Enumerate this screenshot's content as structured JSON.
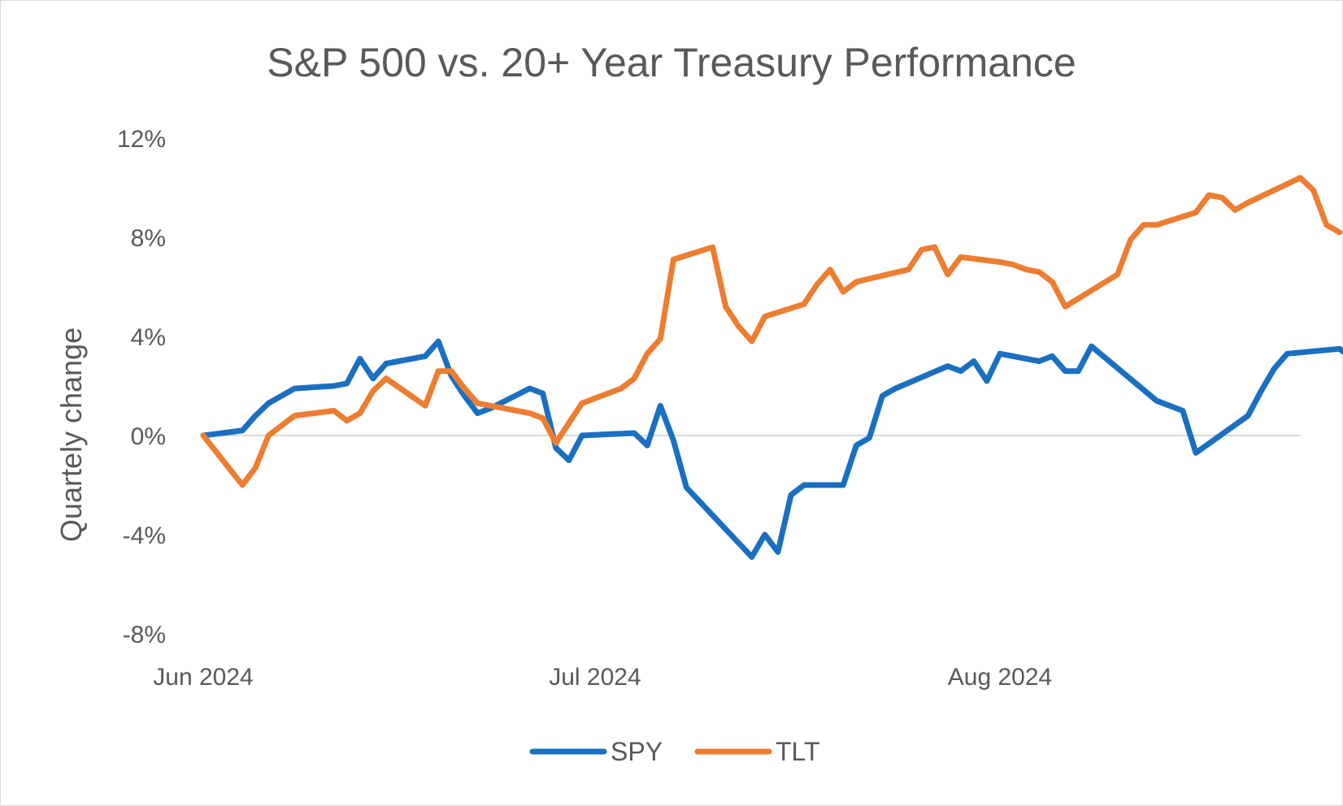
{
  "chart_data": {
    "type": "line",
    "title": "S&P 500 vs. 20+ Year Treasury Performance",
    "xlabel": "",
    "ylabel": "Quartely change",
    "ylim": [
      -8,
      12
    ],
    "yticks": [
      12,
      8,
      4,
      0,
      -4,
      -8
    ],
    "ytick_labels": [
      "12%",
      "8%",
      "4%",
      "0%",
      "-4%",
      "-8%"
    ],
    "xlim": [
      "2024-06-01",
      "2024-08-28"
    ],
    "xticks": [
      {
        "date": "2024-06-01",
        "label": "Jun 2024"
      },
      {
        "date": "2024-07-01",
        "label": "Jul 2024"
      },
      {
        "date": "2024-08-01",
        "label": "Aug 2024"
      }
    ],
    "grid": false,
    "zero_line": true,
    "legend": "bottom",
    "series": [
      {
        "name": "SPY",
        "color": "#1a6fc1",
        "points": [
          [
            "2024-06-01",
            0.0
          ],
          [
            "2024-06-04",
            0.2
          ],
          [
            "2024-06-05",
            0.8
          ],
          [
            "2024-06-06",
            1.3
          ],
          [
            "2024-06-08",
            1.9
          ],
          [
            "2024-06-11",
            2.0
          ],
          [
            "2024-06-12",
            2.1
          ],
          [
            "2024-06-13",
            3.1
          ],
          [
            "2024-06-14",
            2.3
          ],
          [
            "2024-06-15",
            2.9
          ],
          [
            "2024-06-18",
            3.2
          ],
          [
            "2024-06-19",
            3.8
          ],
          [
            "2024-06-20",
            2.4
          ],
          [
            "2024-06-21",
            1.6
          ],
          [
            "2024-06-22",
            0.9
          ],
          [
            "2024-06-23",
            1.1
          ],
          [
            "2024-06-26",
            1.9
          ],
          [
            "2024-06-27",
            1.7
          ],
          [
            "2024-06-28",
            -0.5
          ],
          [
            "2024-06-29",
            -1.0
          ],
          [
            "2024-06-30",
            0.0
          ],
          [
            "2024-07-04",
            0.1
          ],
          [
            "2024-07-05",
            -0.4
          ],
          [
            "2024-07-06",
            1.2
          ],
          [
            "2024-07-07",
            -0.2
          ],
          [
            "2024-07-08",
            -2.1
          ],
          [
            "2024-07-13",
            -4.9
          ],
          [
            "2024-07-14",
            -4.0
          ],
          [
            "2024-07-15",
            -4.7
          ],
          [
            "2024-07-16",
            -2.4
          ],
          [
            "2024-07-17",
            -2.0
          ],
          [
            "2024-07-20",
            -2.0
          ],
          [
            "2024-07-21",
            -0.4
          ],
          [
            "2024-07-22",
            -0.1
          ],
          [
            "2024-07-23",
            1.6
          ],
          [
            "2024-07-24",
            1.9
          ],
          [
            "2024-07-28",
            2.8
          ],
          [
            "2024-07-29",
            2.6
          ],
          [
            "2024-07-30",
            3.0
          ],
          [
            "2024-07-31",
            2.2
          ],
          [
            "2024-08-01",
            3.3
          ],
          [
            "2024-08-04",
            3.0
          ],
          [
            "2024-08-05",
            3.2
          ],
          [
            "2024-08-06",
            2.6
          ],
          [
            "2024-08-07",
            2.6
          ],
          [
            "2024-08-08",
            3.6
          ],
          [
            "2024-08-13",
            1.4
          ],
          [
            "2024-08-15",
            1.0
          ],
          [
            "2024-08-16",
            -0.7
          ],
          [
            "2024-08-20",
            0.8
          ],
          [
            "2024-08-21",
            1.8
          ],
          [
            "2024-08-22",
            2.7
          ],
          [
            "2024-08-23",
            3.3
          ],
          [
            "2024-08-27",
            3.5
          ],
          [
            "2024-08-28",
            3.1
          ],
          [
            "2024-08-29",
            4.9
          ]
        ]
      },
      {
        "name": "TLT",
        "color": "#ed7d31",
        "points": [
          [
            "2024-06-01",
            0.0
          ],
          [
            "2024-06-04",
            -2.0
          ],
          [
            "2024-06-05",
            -1.3
          ],
          [
            "2024-06-06",
            0.0
          ],
          [
            "2024-06-08",
            0.8
          ],
          [
            "2024-06-11",
            1.0
          ],
          [
            "2024-06-12",
            0.6
          ],
          [
            "2024-06-13",
            0.9
          ],
          [
            "2024-06-14",
            1.8
          ],
          [
            "2024-06-15",
            2.3
          ],
          [
            "2024-06-18",
            1.2
          ],
          [
            "2024-06-19",
            2.6
          ],
          [
            "2024-06-20",
            2.6
          ],
          [
            "2024-06-21",
            1.9
          ],
          [
            "2024-06-22",
            1.3
          ],
          [
            "2024-06-26",
            0.9
          ],
          [
            "2024-06-27",
            0.7
          ],
          [
            "2024-06-28",
            -0.3
          ],
          [
            "2024-06-30",
            1.3
          ],
          [
            "2024-07-03",
            1.9
          ],
          [
            "2024-07-04",
            2.3
          ],
          [
            "2024-07-05",
            3.3
          ],
          [
            "2024-07-06",
            3.9
          ],
          [
            "2024-07-07",
            7.1
          ],
          [
            "2024-07-10",
            7.6
          ],
          [
            "2024-07-11",
            5.2
          ],
          [
            "2024-07-12",
            4.4
          ],
          [
            "2024-07-13",
            3.8
          ],
          [
            "2024-07-14",
            4.8
          ],
          [
            "2024-07-17",
            5.3
          ],
          [
            "2024-07-18",
            6.1
          ],
          [
            "2024-07-19",
            6.7
          ],
          [
            "2024-07-20",
            5.8
          ],
          [
            "2024-07-21",
            6.2
          ],
          [
            "2024-07-25",
            6.7
          ],
          [
            "2024-07-26",
            7.5
          ],
          [
            "2024-07-27",
            7.6
          ],
          [
            "2024-07-28",
            6.5
          ],
          [
            "2024-07-29",
            7.2
          ],
          [
            "2024-08-01",
            7.0
          ],
          [
            "2024-08-02",
            6.9
          ],
          [
            "2024-08-03",
            6.7
          ],
          [
            "2024-08-04",
            6.6
          ],
          [
            "2024-08-05",
            6.2
          ],
          [
            "2024-08-06",
            5.2
          ],
          [
            "2024-08-10",
            6.5
          ],
          [
            "2024-08-11",
            7.9
          ],
          [
            "2024-08-12",
            8.5
          ],
          [
            "2024-08-13",
            8.5
          ],
          [
            "2024-08-16",
            9.0
          ],
          [
            "2024-08-17",
            9.7
          ],
          [
            "2024-08-18",
            9.6
          ],
          [
            "2024-08-19",
            9.1
          ],
          [
            "2024-08-20",
            9.4
          ],
          [
            "2024-08-24",
            10.4
          ],
          [
            "2024-08-25",
            9.9
          ],
          [
            "2024-08-26",
            8.5
          ],
          [
            "2024-08-27",
            8.2
          ]
        ]
      }
    ]
  }
}
